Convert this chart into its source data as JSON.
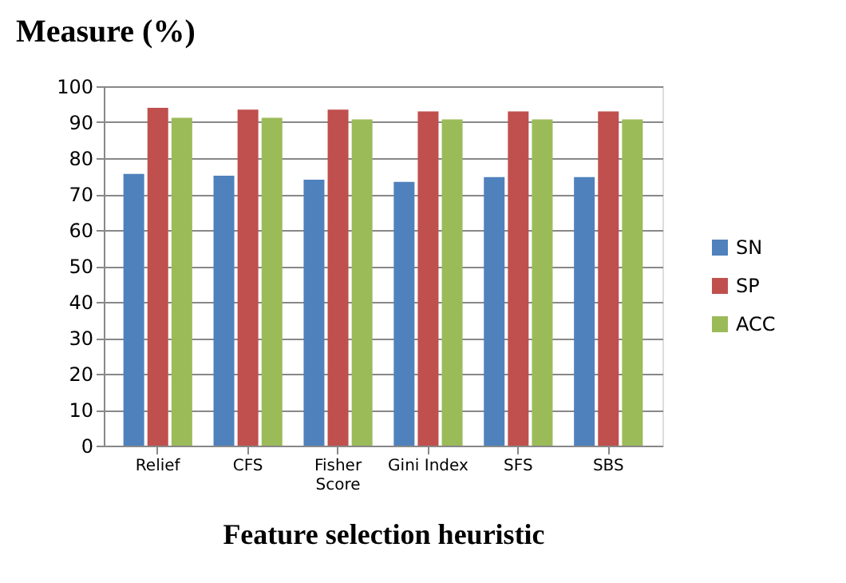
{
  "chart_data": {
    "type": "bar",
    "ylabel": "Measure (%)",
    "xlabel": "Feature selection heuristic",
    "categories": [
      "Relief",
      "CFS",
      "Fisher Score",
      "Gini Index",
      "SFS",
      "SBS"
    ],
    "series": [
      {
        "name": "SN",
        "color": "#4f81bd",
        "values": [
          75.6,
          75.1,
          74.0,
          73.4,
          74.7,
          74.7
        ]
      },
      {
        "name": "SP",
        "color": "#c0504d",
        "values": [
          94.0,
          93.5,
          93.5,
          93.0,
          93.0,
          93.0
        ]
      },
      {
        "name": "ACC",
        "color": "#9bbb59",
        "values": [
          91.2,
          91.2,
          90.8,
          90.8,
          90.8,
          90.8
        ]
      }
    ],
    "ylim": [
      0,
      100
    ],
    "yticks": [
      0,
      10,
      20,
      30,
      40,
      50,
      60,
      70,
      80,
      90,
      100
    ],
    "grid": "y",
    "legend": "right"
  }
}
